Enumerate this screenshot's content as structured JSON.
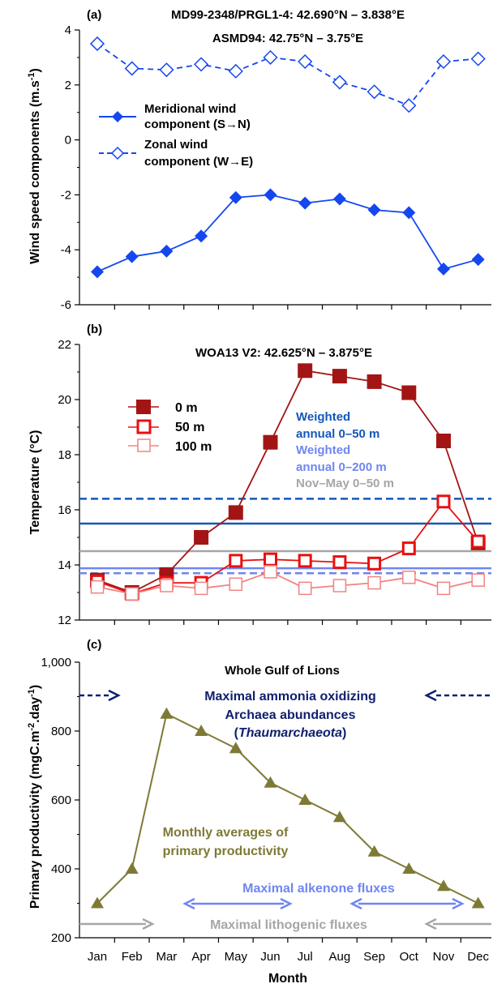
{
  "figure": {
    "xlabel": "Month",
    "months": [
      "Jan",
      "Feb",
      "Mar",
      "Apr",
      "May",
      "Jun",
      "Jul",
      "Aug",
      "Sep",
      "Oct",
      "Nov",
      "Dec"
    ]
  },
  "colors": {
    "meridional": "#1447f0",
    "zonal": "#1447f0",
    "t0": "#a31515",
    "t50": "#e81010",
    "t100": "#f28282",
    "weighted_50": "#1458b8",
    "weighted_200": "#6f86f0",
    "novmay": "#a6a6a6",
    "pp": "#7e7a35",
    "ammonia": "#10206e",
    "alkenone": "#6f86f0",
    "lithogenic": "#a6a6a6",
    "axis": "#000000"
  },
  "chart_data": [
    {
      "panel": "(a)",
      "type": "line",
      "title": "MD99-2348/PRGL1-4: 42.690°N – 3.838°E",
      "subtitle": "ASMD94: 42.75°N – 3.75°E",
      "ylabel": "Wind speed components (m.s-1)",
      "ylim": [
        -6,
        4
      ],
      "yticks": [
        -6,
        -4,
        -2,
        0,
        2,
        4
      ],
      "categories": [
        "Jan",
        "Feb",
        "Mar",
        "Apr",
        "May",
        "Jun",
        "Jul",
        "Aug",
        "Sep",
        "Oct",
        "Nov",
        "Dec"
      ],
      "series": [
        {
          "name": "Meridional wind component (S→N)",
          "style": "solid-filled-diamond",
          "values": [
            -4.8,
            -4.25,
            -4.05,
            -3.5,
            -2.1,
            -2.0,
            -2.3,
            -2.15,
            -2.55,
            -2.65,
            -4.7,
            -4.35
          ]
        },
        {
          "name": "Zonal wind component (W→E)",
          "style": "dashed-open-diamond",
          "values": [
            3.5,
            2.6,
            2.55,
            2.75,
            2.5,
            3.0,
            2.85,
            2.1,
            1.75,
            1.25,
            2.85,
            2.95
          ]
        }
      ],
      "legend_lines": [
        "Meridional wind",
        "component (S→N)",
        "Zonal wind",
        "component (W→E)"
      ]
    },
    {
      "panel": "(b)",
      "type": "line",
      "title": "WOA13 V2: 42.625°N – 3.875°E",
      "ylabel": "Temperature (°C)",
      "ylim": [
        12,
        22
      ],
      "yticks": [
        12,
        14,
        16,
        18,
        20,
        22
      ],
      "categories": [
        "Jan",
        "Feb",
        "Mar",
        "Apr",
        "May",
        "Jun",
        "Jul",
        "Aug",
        "Sep",
        "Oct",
        "Nov",
        "Dec"
      ],
      "series": [
        {
          "name": "0 m",
          "values": [
            13.45,
            13.0,
            13.65,
            15.0,
            15.9,
            18.45,
            21.05,
            20.85,
            20.65,
            20.25,
            18.5,
            14.8
          ]
        },
        {
          "name": "50 m",
          "values": [
            13.4,
            12.95,
            13.35,
            13.35,
            14.15,
            14.2,
            14.15,
            14.1,
            14.05,
            14.6,
            16.3,
            14.85
          ]
        },
        {
          "name": "100 m",
          "values": [
            13.2,
            12.95,
            13.25,
            13.15,
            13.3,
            13.75,
            13.15,
            13.25,
            13.35,
            13.55,
            13.15,
            13.45
          ]
        }
      ],
      "reference_lines": [
        {
          "group": "Weighted annual 0–50 m",
          "values": [
            16.4,
            15.5
          ],
          "styles": [
            "dashed",
            "solid"
          ]
        },
        {
          "group": "Weighted annual 0–200 m",
          "values": [
            13.88,
            13.7
          ],
          "styles": [
            "solid",
            "dashed"
          ]
        },
        {
          "group": "Nov–May 0–50 m",
          "values": [
            14.5
          ],
          "styles": [
            "solid"
          ]
        }
      ],
      "reference_labels": [
        "Weighted",
        "annual 0–50 m",
        "Weighted",
        "annual 0–200 m",
        "Nov–May 0–50 m"
      ]
    },
    {
      "panel": "(c)",
      "type": "line",
      "title": "Whole Gulf of Lions",
      "ylabel": "Primary productivity (mgC.m-2.day-1)",
      "ylim": [
        200,
        1000
      ],
      "yticks": [
        200,
        400,
        600,
        800,
        1000
      ],
      "ytick_labels": [
        "200",
        "400",
        "600",
        "800",
        "1,000"
      ],
      "categories": [
        "Jan",
        "Feb",
        "Mar",
        "Apr",
        "May",
        "Jun",
        "Jul",
        "Aug",
        "Sep",
        "Oct",
        "Nov",
        "Dec"
      ],
      "series": [
        {
          "name": "Monthly averages of primary productivity",
          "values": [
            300,
            400,
            850,
            800,
            750,
            650,
            600,
            550,
            450,
            400,
            350,
            300
          ]
        }
      ],
      "annotations": {
        "ammonia": [
          "Maximal ammonia oxidizing",
          "Archaea abundances",
          "(",
          "Thaumarchaeota",
          ")"
        ],
        "pp_label": [
          "Monthly averages of",
          "primary productivity"
        ],
        "alkenone": "Maximal alkenone fluxes",
        "lithogenic": "Maximal lithogenic fluxes"
      }
    }
  ]
}
